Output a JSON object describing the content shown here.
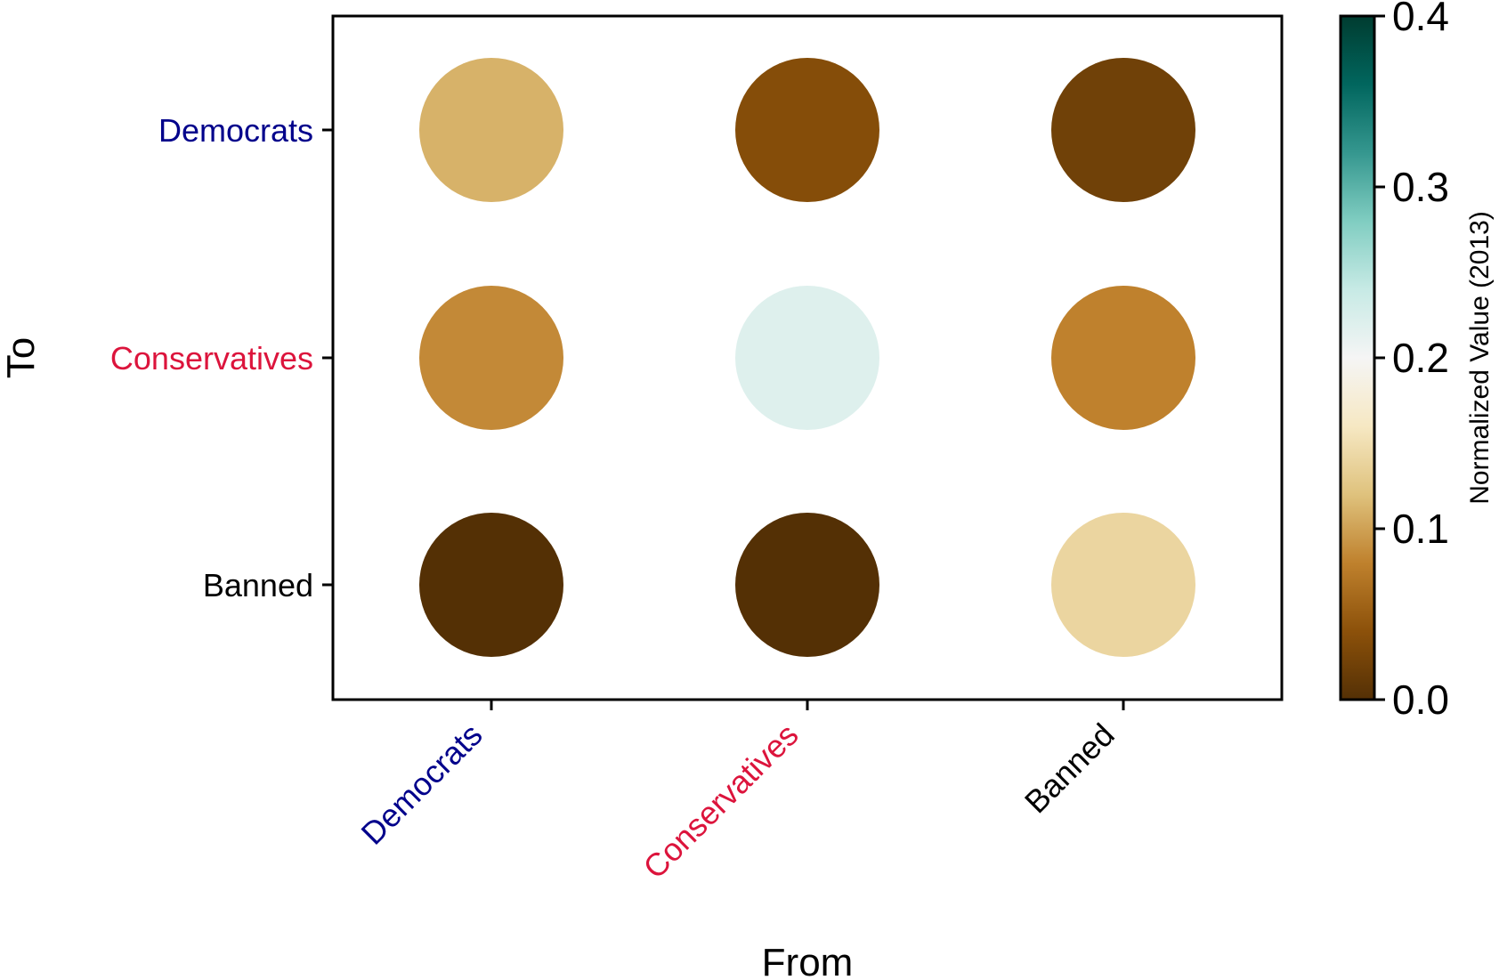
{
  "chart_data": {
    "type": "heatmap",
    "marker": "circle",
    "xlabel": "From",
    "ylabel": "To",
    "x_categories": [
      {
        "label": "Democrats",
        "color": "#00008B"
      },
      {
        "label": "Conservatives",
        "color": "#DC143C"
      },
      {
        "label": "Banned",
        "color": "#000000"
      }
    ],
    "y_categories": [
      {
        "label": "Democrats",
        "color": "#00008B"
      },
      {
        "label": "Conservatives",
        "color": "#DC143C"
      },
      {
        "label": "Banned",
        "color": "#000000"
      }
    ],
    "values": [
      [
        0.11,
        0.035,
        0.02
      ],
      [
        0.085,
        0.22,
        0.08
      ],
      [
        0.0,
        0.0,
        0.14
      ]
    ],
    "colorbar": {
      "label": "Normalized Value (2013)",
      "min": 0.0,
      "max": 0.4,
      "ticks": [
        "0.0",
        "0.1",
        "0.2",
        "0.3",
        "0.4"
      ],
      "colormap": "BrBG",
      "stops": [
        "#543005",
        "#8c510a",
        "#bf812d",
        "#dfc27d",
        "#f6e8c3",
        "#f5f5f5",
        "#c7eae5",
        "#80cdc1",
        "#35978f",
        "#01665e",
        "#003c30"
      ]
    }
  }
}
